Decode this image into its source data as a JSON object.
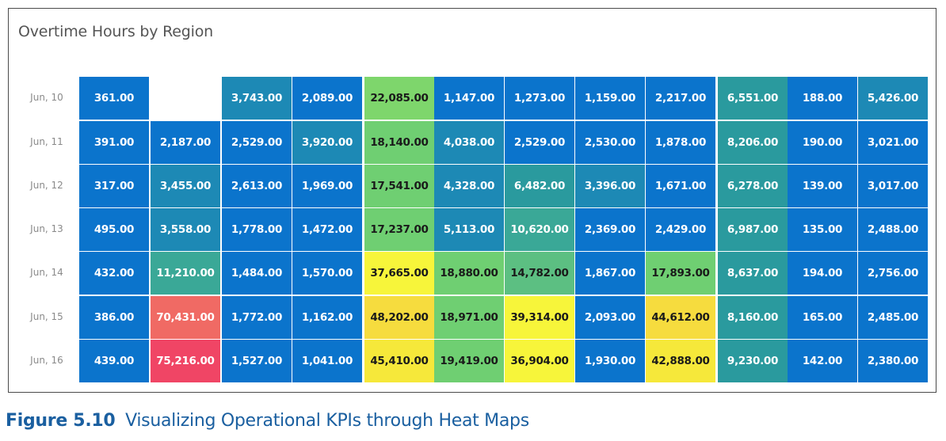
{
  "chart_data": {
    "type": "heatmap",
    "title": "Overtime Hours by Region",
    "rows": [
      "Jun, 10",
      "Jun, 11",
      "Jun, 12",
      "Jun, 13",
      "Jun, 14",
      "Jun, 15",
      "Jun, 16"
    ],
    "values": [
      [
        361,
        null,
        3743,
        2089,
        22085,
        1147,
        1273,
        1159,
        2217,
        6551,
        188,
        5426
      ],
      [
        391,
        2187,
        2529,
        3920,
        18140,
        4038,
        2529,
        2530,
        1878,
        8206,
        190,
        3021
      ],
      [
        317,
        3455,
        2613,
        1969,
        17541,
        4328,
        6482,
        3396,
        1671,
        6278,
        139,
        3017
      ],
      [
        495,
        3558,
        1778,
        1472,
        17237,
        5113,
        10620,
        2369,
        2429,
        6987,
        135,
        2488
      ],
      [
        432,
        11210,
        1484,
        1570,
        37665,
        18880,
        14782,
        1867,
        17893,
        8637,
        194,
        2756
      ],
      [
        386,
        70431,
        1772,
        1162,
        48202,
        18971,
        39314,
        2093,
        44612,
        8160,
        165,
        2485
      ],
      [
        439,
        75216,
        1527,
        1041,
        45410,
        19419,
        36904,
        1930,
        42888,
        9230,
        142,
        2380
      ]
    ],
    "labels": [
      [
        "361.00",
        "",
        "3,743.00",
        "2,089.00",
        "22,085.00",
        "1,147.00",
        "1,273.00",
        "1,159.00",
        "2,217.00",
        "6,551.00",
        "188.00",
        "5,426.00"
      ],
      [
        "391.00",
        "2,187.00",
        "2,529.00",
        "3,920.00",
        "18,140.00",
        "4,038.00",
        "2,529.00",
        "2,530.00",
        "1,878.00",
        "8,206.00",
        "190.00",
        "3,021.00"
      ],
      [
        "317.00",
        "3,455.00",
        "2,613.00",
        "1,969.00",
        "17,541.00",
        "4,328.00",
        "6,482.00",
        "3,396.00",
        "1,671.00",
        "6,278.00",
        "139.00",
        "3,017.00"
      ],
      [
        "495.00",
        "3,558.00",
        "1,778.00",
        "1,472.00",
        "17,237.00",
        "5,113.00",
        "10,620.00",
        "2,369.00",
        "2,429.00",
        "6,987.00",
        "135.00",
        "2,488.00"
      ],
      [
        "432.00",
        "11,210.00",
        "1,484.00",
        "1,570.00",
        "37,665.00",
        "18,880.00",
        "14,782.00",
        "1,867.00",
        "17,893.00",
        "8,637.00",
        "194.00",
        "2,756.00"
      ],
      [
        "386.00",
        "70,431.00",
        "1,772.00",
        "1,162.00",
        "48,202.00",
        "18,971.00",
        "39,314.00",
        "2,093.00",
        "44,612.00",
        "8,160.00",
        "165.00",
        "2,485.00"
      ],
      [
        "439.00",
        "75,216.00",
        "1,527.00",
        "1,041.00",
        "45,410.00",
        "19,419.00",
        "36,904.00",
        "1,930.00",
        "42,888.00",
        "9,230.00",
        "142.00",
        "2,380.00"
      ]
    ],
    "colors": [
      [
        "#0b74cc",
        null,
        "#1d89b5",
        "#0b74cc",
        "#7ed66c",
        "#0b74cc",
        "#0b74cc",
        "#0b74cc",
        "#0b74cc",
        "#2a9a9e",
        "#0b74cc",
        "#1d89b5"
      ],
      [
        "#0b74cc",
        "#0b74cc",
        "#0b74cc",
        "#1d89b5",
        "#6fcf72",
        "#1d89b5",
        "#0b74cc",
        "#0b74cc",
        "#0b74cc",
        "#2a9a9e",
        "#0b74cc",
        "#0b74cc"
      ],
      [
        "#0b74cc",
        "#1d89b5",
        "#0b74cc",
        "#0b74cc",
        "#6fcf72",
        "#1d89b5",
        "#2a9a9e",
        "#1d89b5",
        "#0b74cc",
        "#2a9a9e",
        "#0b74cc",
        "#0b74cc"
      ],
      [
        "#0b74cc",
        "#1d89b5",
        "#0b74cc",
        "#0b74cc",
        "#6fcf72",
        "#1d89b5",
        "#3aa897",
        "#0b74cc",
        "#0b74cc",
        "#2a9a9e",
        "#0b74cc",
        "#0b74cc"
      ],
      [
        "#0b74cc",
        "#3aa897",
        "#0b74cc",
        "#0b74cc",
        "#f7f53a",
        "#6fcf72",
        "#5cbf82",
        "#0b74cc",
        "#6fcf72",
        "#2a9a9e",
        "#0b74cc",
        "#0b74cc"
      ],
      [
        "#0b74cc",
        "#f06a64",
        "#0b74cc",
        "#0b74cc",
        "#f6dc3e",
        "#6fcf72",
        "#f7f53a",
        "#0b74cc",
        "#f6dc3e",
        "#2a9a9e",
        "#0b74cc",
        "#0b74cc"
      ],
      [
        "#0b74cc",
        "#f04565",
        "#0b74cc",
        "#0b74cc",
        "#f6e83a",
        "#6fcf72",
        "#f7f53a",
        "#0b74cc",
        "#f6e83a",
        "#2a9a9e",
        "#0b74cc",
        "#0b74cc"
      ]
    ],
    "grid": false,
    "legend": "none"
  },
  "caption": {
    "label": "Figure 5.10",
    "text": "Visualizing Operational KPIs through Heat Maps"
  }
}
